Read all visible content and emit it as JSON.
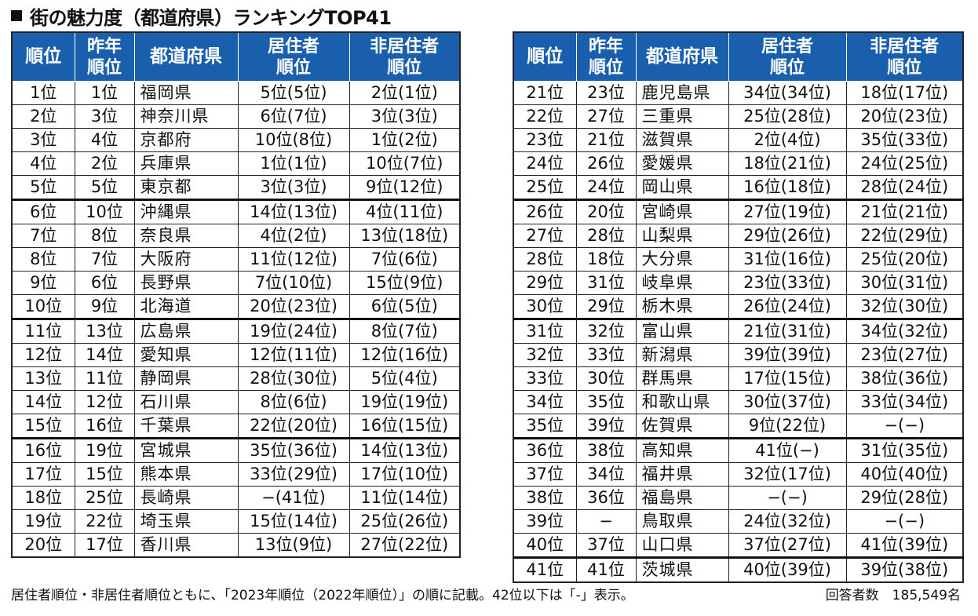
{
  "title": "街の魅力度（都道府県）ランキングTOP41",
  "headers": {
    "rank": "順位",
    "prev_rank_l1": "昨年",
    "prev_rank_l2": "順位",
    "prefecture": "都道府県",
    "resident_l1": "居住者",
    "resident_l2": "順位",
    "nonresident_l1": "非居住者",
    "nonresident_l2": "順位"
  },
  "left_rows": [
    [
      "1位",
      "1位",
      "福岡県",
      "5位(5位)",
      "2位(1位)"
    ],
    [
      "2位",
      "3位",
      "神奈川県",
      "6位(7位)",
      "3位(3位)"
    ],
    [
      "3位",
      "4位",
      "京都府",
      "10位(8位)",
      "1位(2位)"
    ],
    [
      "4位",
      "2位",
      "兵庫県",
      "1位(1位)",
      "10位(7位)"
    ],
    [
      "5位",
      "5位",
      "東京都",
      "3位(3位)",
      "9位(12位)"
    ],
    [
      "6位",
      "10位",
      "沖縄県",
      "14位(13位)",
      "4位(11位)"
    ],
    [
      "7位",
      "8位",
      "奈良県",
      "4位(2位)",
      "13位(18位)"
    ],
    [
      "8位",
      "7位",
      "大阪府",
      "11位(12位)",
      "7位(6位)"
    ],
    [
      "9位",
      "6位",
      "長野県",
      "7位(10位)",
      "15位(9位)"
    ],
    [
      "10位",
      "9位",
      "北海道",
      "20位(23位)",
      "6位(5位)"
    ],
    [
      "11位",
      "13位",
      "広島県",
      "19位(24位)",
      "8位(7位)"
    ],
    [
      "12位",
      "14位",
      "愛知県",
      "12位(11位)",
      "12位(16位)"
    ],
    [
      "13位",
      "11位",
      "静岡県",
      "28位(30位)",
      "5位(4位)"
    ],
    [
      "14位",
      "12位",
      "石川県",
      "8位(6位)",
      "19位(19位)"
    ],
    [
      "15位",
      "16位",
      "千葉県",
      "22位(20位)",
      "16位(15位)"
    ],
    [
      "16位",
      "19位",
      "宮城県",
      "35位(36位)",
      "14位(13位)"
    ],
    [
      "17位",
      "15位",
      "熊本県",
      "33位(29位)",
      "17位(10位)"
    ],
    [
      "18位",
      "25位",
      "長崎県",
      "−(41位)",
      "11位(14位)"
    ],
    [
      "19位",
      "22位",
      "埼玉県",
      "15位(14位)",
      "25位(26位)"
    ],
    [
      "20位",
      "17位",
      "香川県",
      "13位(9位)",
      "27位(22位)"
    ]
  ],
  "right_rows": [
    [
      "21位",
      "23位",
      "鹿児島県",
      "34位(34位)",
      "18位(17位)"
    ],
    [
      "22位",
      "27位",
      "三重県",
      "25位(28位)",
      "20位(23位)"
    ],
    [
      "23位",
      "21位",
      "滋賀県",
      "2位(4位)",
      "35位(33位)"
    ],
    [
      "24位",
      "26位",
      "愛媛県",
      "18位(21位)",
      "24位(25位)"
    ],
    [
      "25位",
      "24位",
      "岡山県",
      "16位(18位)",
      "28位(24位)"
    ],
    [
      "26位",
      "20位",
      "宮崎県",
      "27位(19位)",
      "21位(21位)"
    ],
    [
      "27位",
      "28位",
      "山梨県",
      "29位(26位)",
      "22位(29位)"
    ],
    [
      "28位",
      "18位",
      "大分県",
      "31位(16位)",
      "25位(20位)"
    ],
    [
      "29位",
      "31位",
      "岐阜県",
      "23位(33位)",
      "30位(31位)"
    ],
    [
      "30位",
      "29位",
      "栃木県",
      "26位(24位)",
      "32位(30位)"
    ],
    [
      "31位",
      "32位",
      "富山県",
      "21位(31位)",
      "34位(32位)"
    ],
    [
      "32位",
      "33位",
      "新潟県",
      "39位(39位)",
      "23位(27位)"
    ],
    [
      "33位",
      "30位",
      "群馬県",
      "17位(15位)",
      "38位(36位)"
    ],
    [
      "34位",
      "35位",
      "和歌山県",
      "30位(37位)",
      "33位(34位)"
    ],
    [
      "35位",
      "39位",
      "佐賀県",
      "9位(22位)",
      "−(−)"
    ],
    [
      "36位",
      "38位",
      "高知県",
      "41位(−)",
      "31位(35位)"
    ],
    [
      "37位",
      "34位",
      "福井県",
      "32位(17位)",
      "40位(40位)"
    ],
    [
      "38位",
      "36位",
      "福島県",
      "−(−)",
      "29位(28位)"
    ],
    [
      "39位",
      "−",
      "鳥取県",
      "24位(32位)",
      "−(−)"
    ],
    [
      "40位",
      "37位",
      "山口県",
      "37位(27位)",
      "41位(39位)"
    ],
    [
      "41位",
      "41位",
      "茨城県",
      "40位(39位)",
      "39位(38位)"
    ]
  ],
  "footnote": "居住者順位・非居住者順位ともに、「2023年順位（2022年順位）」の順に記載。42位以下は「-」表示。",
  "respondents": "回答者数　185,549名",
  "colors": {
    "header_bg": "#1a5fae",
    "header_text": "#ffffff"
  }
}
